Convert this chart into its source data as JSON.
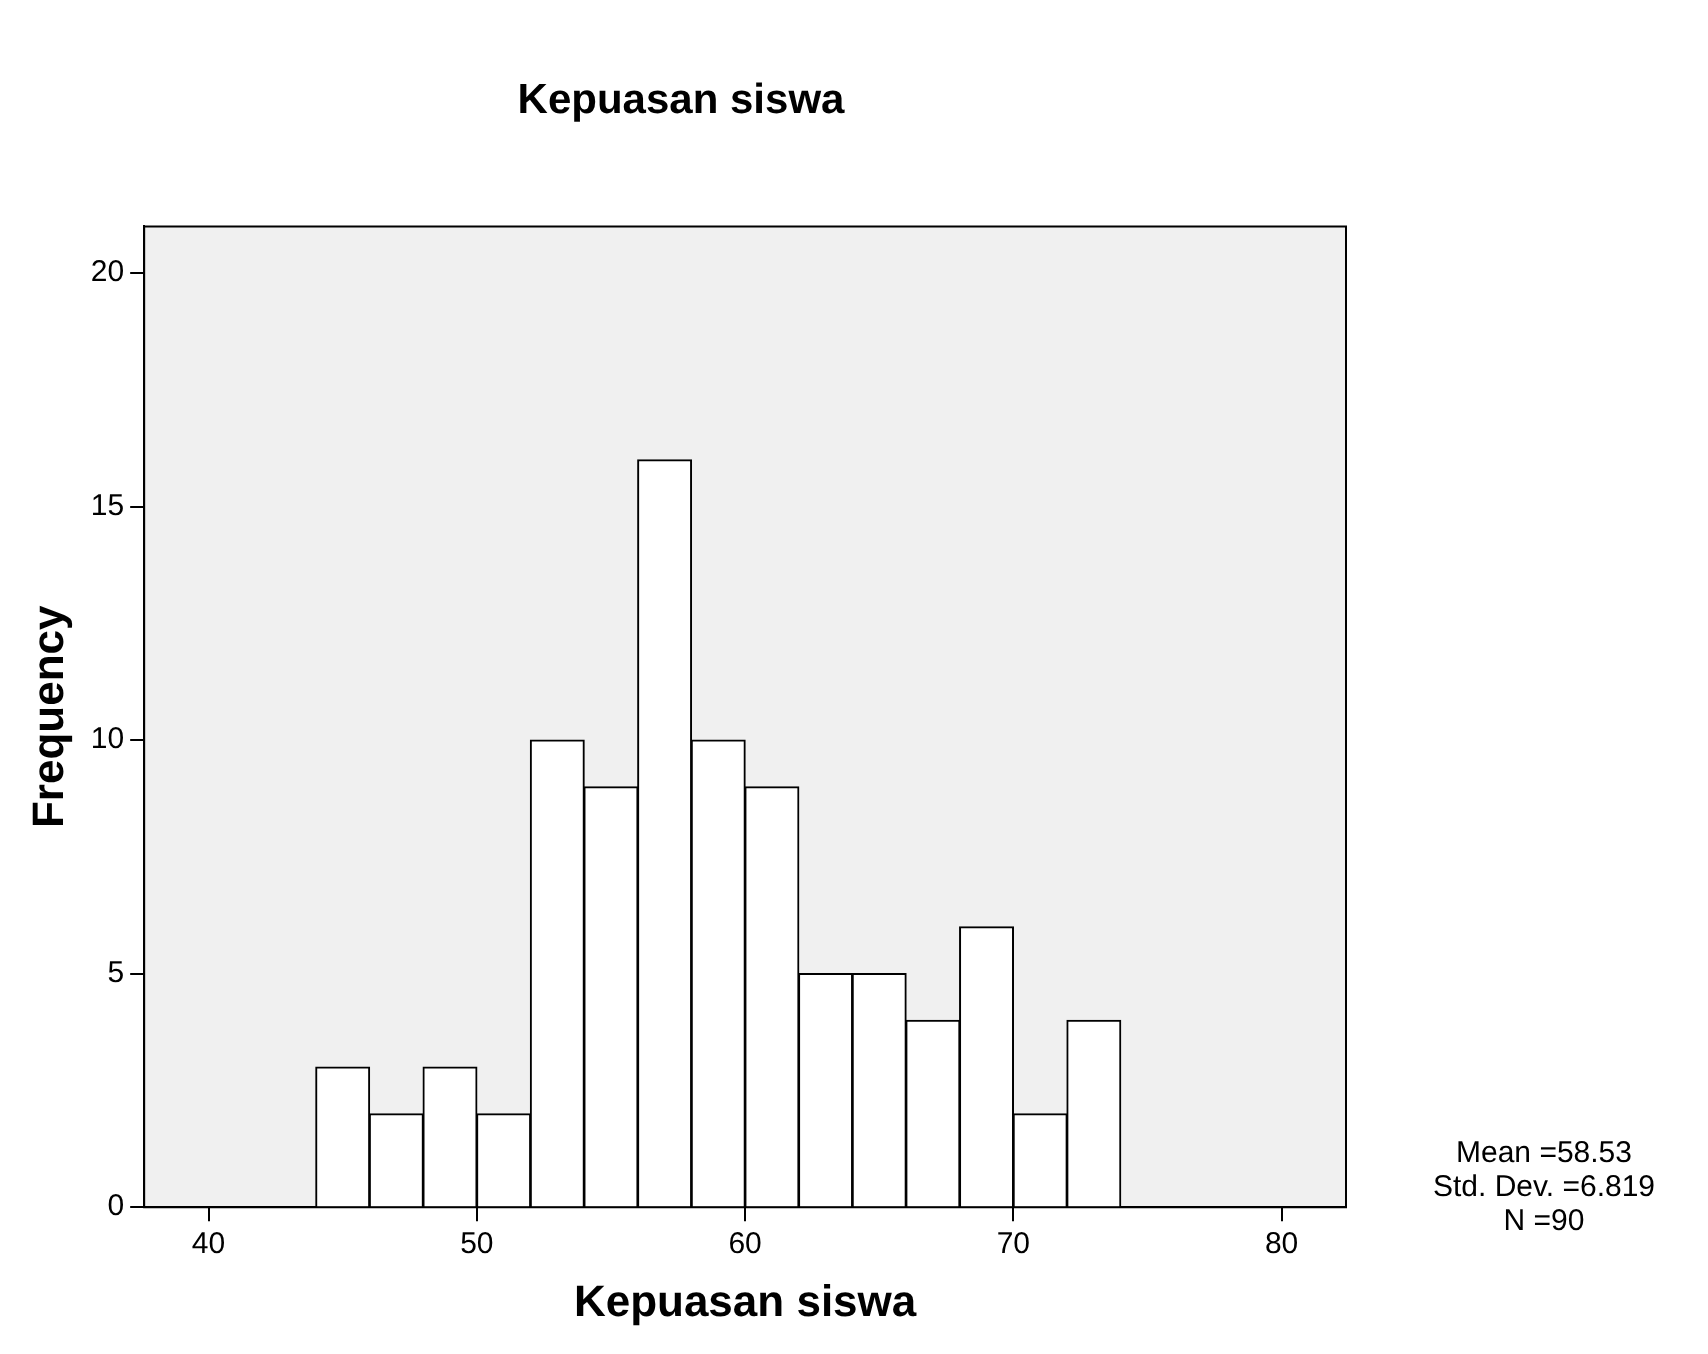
{
  "chart_data": {
    "type": "histogram",
    "title": "Kepuasan siswa",
    "xlabel": "Kepuasan siswa",
    "ylabel": "Frequency",
    "bins": [
      44,
      46,
      48,
      50,
      52,
      54,
      56,
      58,
      60,
      62,
      64,
      66,
      68,
      70,
      72,
      74
    ],
    "values": [
      3,
      2,
      3,
      2,
      10,
      9,
      16,
      10,
      9,
      5,
      5,
      4,
      6,
      2,
      4
    ],
    "color": "#ffffff",
    "xlim": [
      37.6,
      82.4
    ],
    "xticks": [
      40,
      50,
      60,
      70,
      80
    ],
    "ylim": [
      0,
      21
    ],
    "yticks": [
      0,
      5,
      10,
      15,
      20
    ],
    "grid": false,
    "legend": false,
    "annotations": [
      "Mean =58.53",
      "Std. Dev. =6.819",
      "N =90"
    ]
  }
}
